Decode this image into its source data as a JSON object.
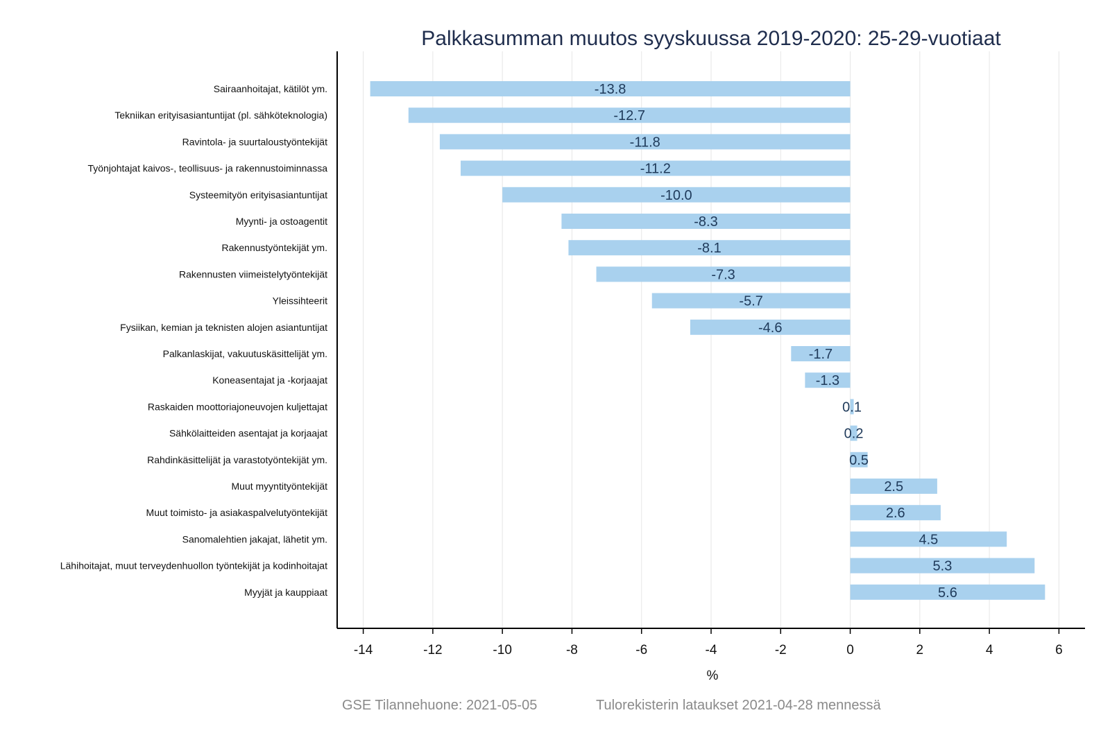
{
  "chart_data": {
    "type": "bar",
    "orientation": "horizontal",
    "title": "Palkkasumman muutos syyskuussa 2019-2020: 25-29-vuotiaat",
    "xlabel": "%",
    "ylabel": "",
    "xlim": [
      -14.75,
      6.75
    ],
    "xticks": [
      -14,
      -12,
      -10,
      -8,
      -6,
      -4,
      -2,
      0,
      2,
      4,
      6
    ],
    "xtick_labels": [
      "-14",
      "-12",
      "-10",
      "-8",
      "-6",
      "-4",
      "-2",
      "0",
      "2",
      "4",
      "6"
    ],
    "grid": "vertical",
    "bar_color": "#a9d1ee",
    "label_color": "#1f3a5a",
    "categories": [
      "Sairaanhoitajat, kätilöt ym.",
      "Tekniikan erityisasiantuntijat (pl. sähköteknologia)",
      "Ravintola- ja suurtaloustyöntekijät",
      "Työnjohtajat kaivos-, teollisuus- ja rakennustoiminnassa",
      "Systeemityön erityisasiantuntijat",
      "Myynti- ja ostoagentit",
      "Rakennustyöntekijät ym.",
      "Rakennusten viimeistelytyöntekijät",
      "Yleissihteerit",
      "Fysiikan, kemian ja teknisten alojen asiantuntijat",
      "Palkanlaskijat, vakuutuskäsittelijät ym.",
      "Koneasentajat ja -korjaajat",
      "Raskaiden moottoriajoneuvojen kuljettajat",
      "Sähkölaitteiden asentajat ja korjaajat",
      "Rahdinkäsittelijät ja varastotyöntekijät ym.",
      "Muut myyntityöntekijät",
      "Muut toimisto- ja asiakaspalvelutyöntekijät",
      "Sanomalehtien jakajat, lähetit ym.",
      "Lähihoitajat, muut terveydenhuollon työntekijät ja kodinhoitajat",
      "Myyjät ja kauppiaat"
    ],
    "values": [
      -13.8,
      -12.7,
      -11.8,
      -11.2,
      -10.0,
      -8.3,
      -8.1,
      -7.3,
      -5.7,
      -4.6,
      -1.7,
      -1.3,
      0.1,
      0.2,
      0.5,
      2.5,
      2.6,
      4.5,
      5.3,
      5.6
    ],
    "value_labels": [
      "-13.8",
      "-12.7",
      "-11.8",
      "-11.2",
      "-10.0",
      "-8.3",
      "-8.1",
      "-7.3",
      "-5.7",
      "-4.6",
      "-1.7",
      "-1.3",
      "0.1",
      "0.2",
      "0.5",
      "2.5",
      "2.6",
      "4.5",
      "5.3",
      "5.6"
    ]
  },
  "footer": {
    "source": "GSE Tilannehuone: 2021-05-05",
    "note": "Tulorekisterin lataukset 2021-04-28 mennessä"
  }
}
